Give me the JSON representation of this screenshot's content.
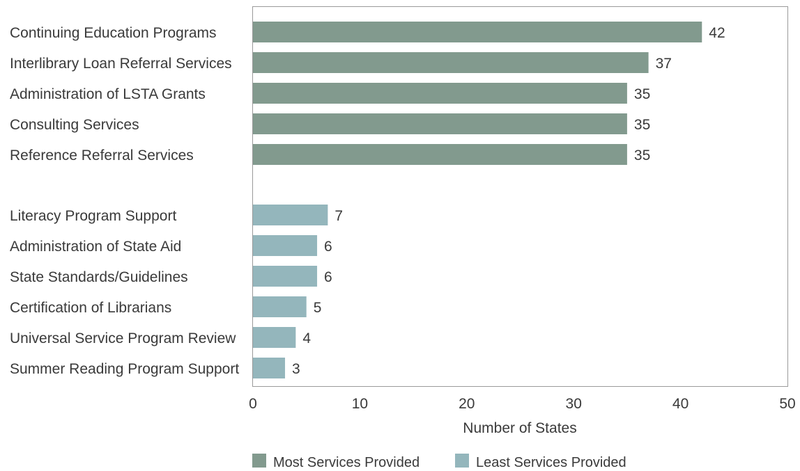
{
  "chart_data": {
    "type": "bar",
    "orientation": "horizontal",
    "xlabel": "Number of States",
    "ylabel": "",
    "xlim": [
      0,
      50
    ],
    "xticks": [
      0,
      10,
      20,
      30,
      40,
      50
    ],
    "grid": false,
    "legend_position": "bottom",
    "series": [
      {
        "name": "Most Services Provided",
        "color": "#829a8e",
        "categories": [
          "Continuing Education Programs",
          "Interlibrary Loan Referral Services",
          "Administration of LSTA Grants",
          "Consulting Services",
          "Reference Referral Services"
        ],
        "values": [
          42,
          37,
          35,
          35,
          35
        ]
      },
      {
        "name": "Least Services Provided",
        "color": "#94b6bc",
        "categories": [
          "Literacy Program Support",
          "Administration of State Aid",
          "State Standards/Guidelines",
          "Certification of Librarians",
          "Universal Service Program Review",
          "Summer Reading Program Support"
        ],
        "values": [
          7,
          6,
          6,
          5,
          4,
          3
        ]
      }
    ]
  }
}
